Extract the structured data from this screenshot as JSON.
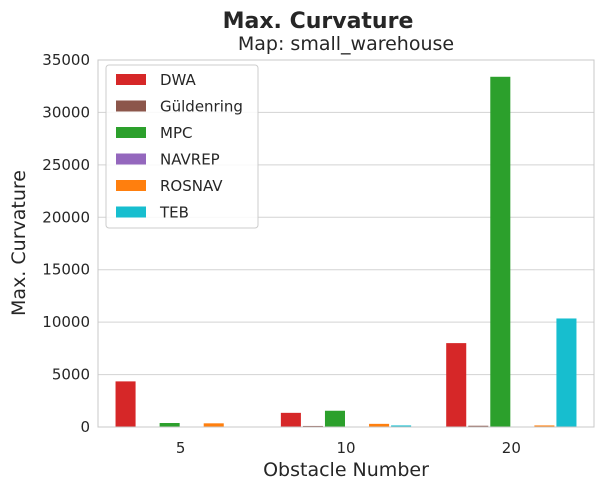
{
  "chart_data": {
    "type": "bar",
    "title": "Max. Curvature",
    "subtitle": "Map: small_warehouse",
    "xlabel": "Obstacle Number",
    "ylabel": "Max. Curvature",
    "ylim": [
      0,
      35000
    ],
    "yticks": [
      0,
      5000,
      10000,
      15000,
      20000,
      25000,
      30000,
      35000
    ],
    "categories": [
      "5",
      "10",
      "20"
    ],
    "grid": true,
    "legend_position": "top-left",
    "series": [
      {
        "name": "DWA",
        "color": "#d62728",
        "values": [
          4350,
          1350,
          8000
        ]
      },
      {
        "name": "Güldenring",
        "color": "#8c564b",
        "values": [
          40,
          100,
          120
        ]
      },
      {
        "name": "MPC",
        "color": "#2ca02c",
        "values": [
          380,
          1550,
          33400
        ]
      },
      {
        "name": "NAVREP",
        "color": "#9467bd",
        "values": [
          0,
          40,
          0
        ]
      },
      {
        "name": "ROSNAV",
        "color": "#ff7f0e",
        "values": [
          350,
          300,
          150
        ]
      },
      {
        "name": "TEB",
        "color": "#17becf",
        "values": [
          0,
          150,
          10350
        ]
      }
    ]
  }
}
